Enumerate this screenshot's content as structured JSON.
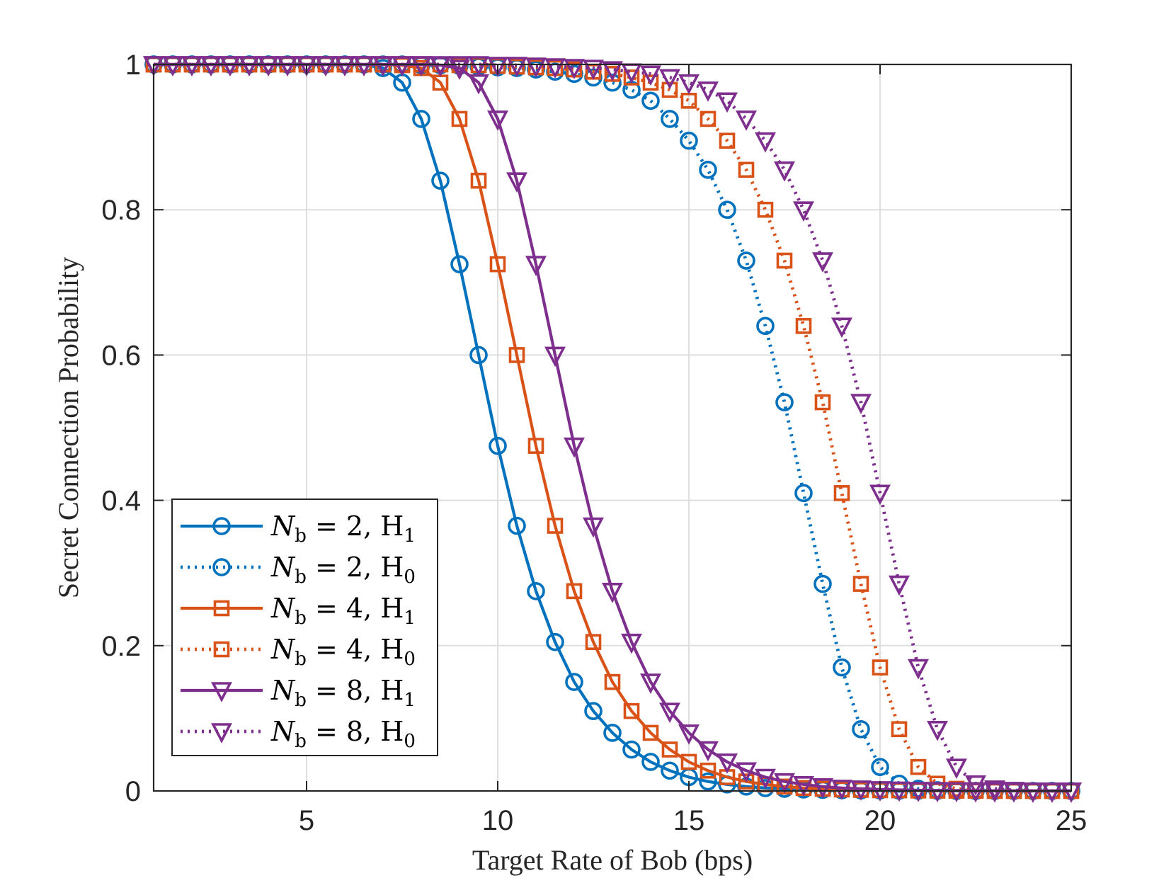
{
  "chart_data": {
    "type": "line",
    "xlabel": "Target Rate of Bob (bps)",
    "ylabel": "Secret Connection Probability",
    "xlim": [
      1,
      25
    ],
    "ylim": [
      0,
      1
    ],
    "xticks": [
      5,
      10,
      15,
      20,
      25
    ],
    "xtick_labels": [
      "5",
      "10",
      "15",
      "20",
      "25"
    ],
    "yticks": [
      0,
      0.2,
      0.4,
      0.6,
      0.8,
      1
    ],
    "ytick_labels": [
      "0",
      "0.2",
      "0.4",
      "0.6",
      "0.8",
      "1"
    ],
    "grid": true,
    "legend_position": "bottom-left",
    "x": [
      1.0,
      1.5,
      2.0,
      2.5,
      3.0,
      3.5,
      4.0,
      4.5,
      5.0,
      5.5,
      6.0,
      6.5,
      7.0,
      7.5,
      8.0,
      8.5,
      9.0,
      9.5,
      10.0,
      10.5,
      11.0,
      11.5,
      12.0,
      12.5,
      13.0,
      13.5,
      14.0,
      14.5,
      15.0,
      15.5,
      16.0,
      16.5,
      17.0,
      17.5,
      18.0,
      18.5,
      19.0,
      19.5,
      20.0,
      20.5,
      21.0,
      21.5,
      22.0,
      22.5,
      23.0,
      23.5,
      24.0,
      24.5,
      25.0
    ],
    "series": [
      {
        "name": "N_b = 2, H_1",
        "legend": {
          "sym": "N",
          "sub": "b",
          "num": "2",
          "hyp": "H",
          "hsub": "1"
        },
        "color": "#0072BD",
        "linestyle": "solid",
        "marker": "circle",
        "values": [
          1.0,
          1.0,
          1.0,
          1.0,
          1.0,
          1.0,
          1.0,
          1.0,
          1.0,
          1.0,
          1.0,
          1.0,
          0.995,
          0.975,
          0.925,
          0.84,
          0.725,
          0.6,
          0.475,
          0.365,
          0.275,
          0.205,
          0.15,
          0.11,
          0.08,
          0.057,
          0.04,
          0.028,
          0.019,
          0.013,
          0.009,
          0.006,
          0.004,
          0.003,
          0.002,
          0.0015,
          0.001,
          0.0008,
          0.0006,
          0.0004,
          0.0003,
          0.0002,
          0.0002,
          0.0001,
          0.0001,
          0.0,
          0.0,
          0.0,
          0.0
        ]
      },
      {
        "name": "N_b = 2, H_0",
        "legend": {
          "sym": "N",
          "sub": "b",
          "num": "2",
          "hyp": "H",
          "hsub": "0"
        },
        "color": "#0072BD",
        "linestyle": "dotted",
        "marker": "circle",
        "values": [
          1.0,
          1.0,
          1.0,
          1.0,
          1.0,
          1.0,
          1.0,
          1.0,
          1.0,
          1.0,
          1.0,
          1.0,
          1.0,
          1.0,
          0.999,
          0.999,
          0.998,
          0.997,
          0.996,
          0.995,
          0.993,
          0.99,
          0.987,
          0.982,
          0.975,
          0.965,
          0.95,
          0.925,
          0.895,
          0.855,
          0.8,
          0.73,
          0.64,
          0.535,
          0.41,
          0.285,
          0.17,
          0.085,
          0.033,
          0.01,
          0.003,
          0.001,
          0.0,
          0.0,
          0.0,
          0.0,
          0.0,
          0.0,
          0.0
        ]
      },
      {
        "name": "N_b = 4, H_1",
        "legend": {
          "sym": "N",
          "sub": "b",
          "num": "4",
          "hyp": "H",
          "hsub": "1"
        },
        "color": "#D95319",
        "linestyle": "solid",
        "marker": "square",
        "values": [
          1.0,
          1.0,
          1.0,
          1.0,
          1.0,
          1.0,
          1.0,
          1.0,
          1.0,
          1.0,
          1.0,
          1.0,
          1.0,
          0.999,
          0.995,
          0.975,
          0.925,
          0.84,
          0.725,
          0.6,
          0.475,
          0.365,
          0.275,
          0.205,
          0.15,
          0.11,
          0.08,
          0.057,
          0.04,
          0.028,
          0.019,
          0.013,
          0.009,
          0.006,
          0.004,
          0.003,
          0.002,
          0.0015,
          0.001,
          0.0008,
          0.0006,
          0.0004,
          0.0003,
          0.0002,
          0.0002,
          0.0001,
          0.0001,
          0.0,
          0.0
        ]
      },
      {
        "name": "N_b = 4, H_0",
        "legend": {
          "sym": "N",
          "sub": "b",
          "num": "4",
          "hyp": "H",
          "hsub": "0"
        },
        "color": "#D95319",
        "linestyle": "dotted",
        "marker": "square",
        "values": [
          1.0,
          1.0,
          1.0,
          1.0,
          1.0,
          1.0,
          1.0,
          1.0,
          1.0,
          1.0,
          1.0,
          1.0,
          1.0,
          1.0,
          1.0,
          1.0,
          0.999,
          0.999,
          0.998,
          0.997,
          0.996,
          0.995,
          0.993,
          0.99,
          0.987,
          0.982,
          0.975,
          0.965,
          0.95,
          0.925,
          0.895,
          0.855,
          0.8,
          0.73,
          0.64,
          0.535,
          0.41,
          0.285,
          0.17,
          0.085,
          0.033,
          0.01,
          0.003,
          0.001,
          0.0,
          0.0,
          0.0,
          0.0,
          0.0
        ]
      },
      {
        "name": "N_b = 8, H_1",
        "legend": {
          "sym": "N",
          "sub": "b",
          "num": "8",
          "hyp": "H",
          "hsub": "1"
        },
        "color": "#7E2F8E",
        "linestyle": "solid",
        "marker": "triangle-down",
        "values": [
          1.0,
          1.0,
          1.0,
          1.0,
          1.0,
          1.0,
          1.0,
          1.0,
          1.0,
          1.0,
          1.0,
          1.0,
          1.0,
          1.0,
          1.0,
          0.999,
          0.995,
          0.975,
          0.925,
          0.84,
          0.725,
          0.6,
          0.475,
          0.365,
          0.275,
          0.205,
          0.15,
          0.11,
          0.08,
          0.057,
          0.04,
          0.028,
          0.019,
          0.013,
          0.009,
          0.006,
          0.004,
          0.003,
          0.002,
          0.0015,
          0.001,
          0.0008,
          0.0006,
          0.0004,
          0.0003,
          0.0002,
          0.0002,
          0.0001,
          0.0001
        ]
      },
      {
        "name": "N_b = 8, H_0",
        "legend": {
          "sym": "N",
          "sub": "b",
          "num": "8",
          "hyp": "H",
          "hsub": "0"
        },
        "color": "#7E2F8E",
        "linestyle": "dotted",
        "marker": "triangle-down",
        "values": [
          1.0,
          1.0,
          1.0,
          1.0,
          1.0,
          1.0,
          1.0,
          1.0,
          1.0,
          1.0,
          1.0,
          1.0,
          1.0,
          1.0,
          1.0,
          1.0,
          1.0,
          1.0,
          0.999,
          0.999,
          0.998,
          0.997,
          0.996,
          0.995,
          0.993,
          0.99,
          0.987,
          0.982,
          0.975,
          0.965,
          0.95,
          0.925,
          0.895,
          0.855,
          0.8,
          0.73,
          0.64,
          0.535,
          0.41,
          0.285,
          0.17,
          0.085,
          0.033,
          0.01,
          0.003,
          0.001,
          0.0,
          0.0,
          0.0
        ]
      }
    ]
  }
}
